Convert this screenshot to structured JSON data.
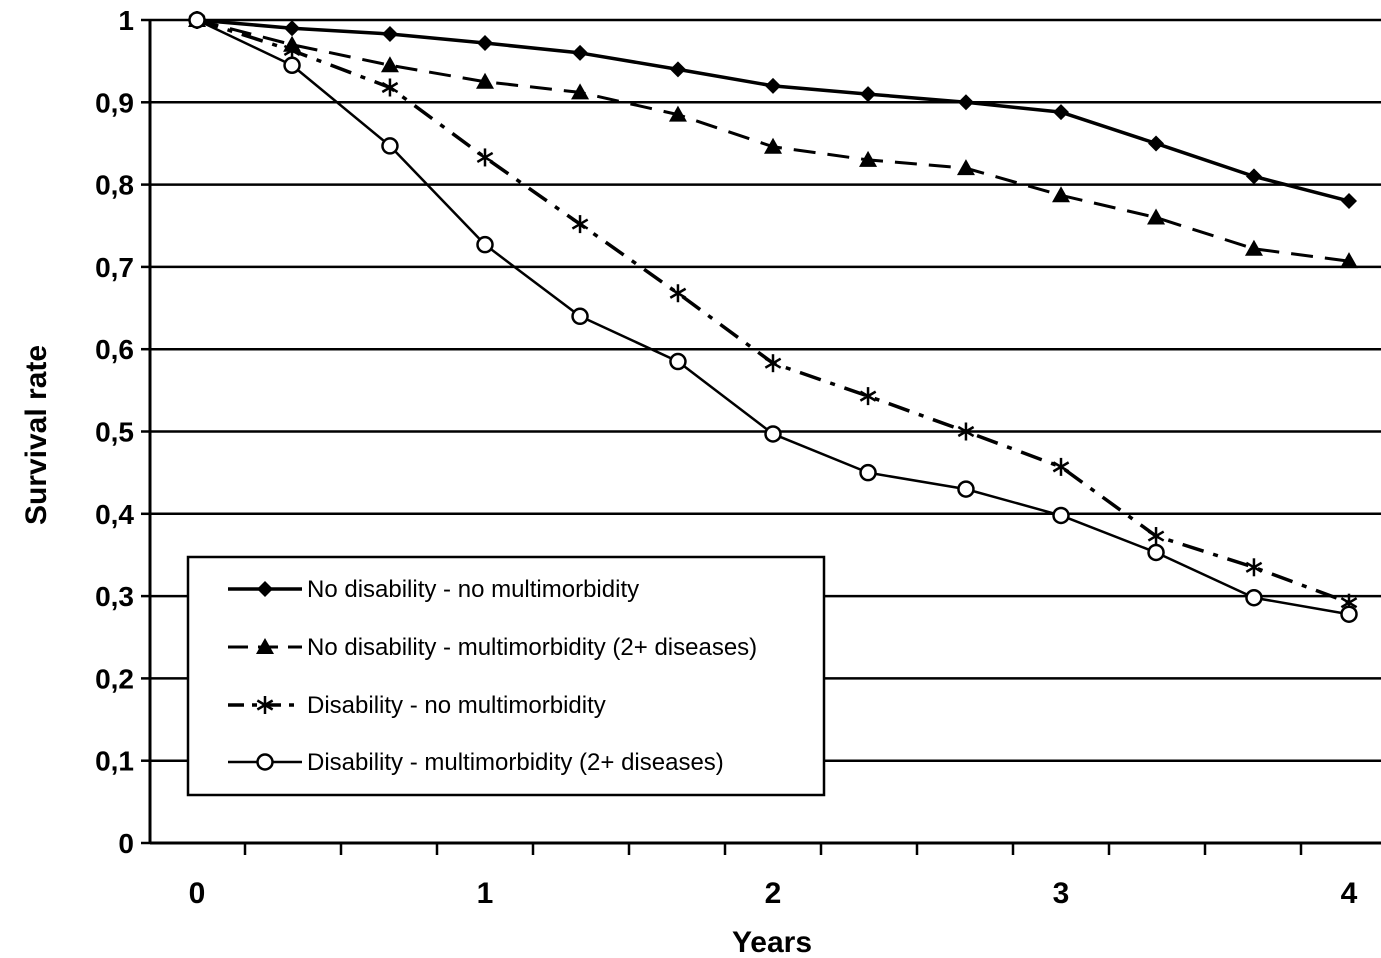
{
  "chart_data": {
    "type": "line",
    "title": "",
    "xlabel": "Years",
    "ylabel": "Survival rate",
    "xlim": [
      -0.1,
      4.2
    ],
    "ylim": [
      0,
      1
    ],
    "x_ticks": [
      0,
      1,
      2,
      3,
      4
    ],
    "x_tick_labels": [
      "0",
      "1",
      "2",
      "3",
      "4"
    ],
    "y_ticks": [
      0,
      0.1,
      0.2,
      0.3,
      0.4,
      0.5,
      0.6,
      0.7,
      0.8,
      0.9,
      1
    ],
    "y_tick_labels": [
      "0",
      "0,1",
      "0,2",
      "0,3",
      "0,4",
      "0,5",
      "0,6",
      "0,7",
      "0,8",
      "0,9",
      "1"
    ],
    "grid": "horizontal",
    "legend_position": "bottom-left",
    "series": [
      {
        "name": "No disability - no multimorbidity",
        "marker": "diamond",
        "dash": "solid",
        "x": [
          0,
          0.33,
          0.67,
          1.0,
          1.33,
          1.67,
          2.0,
          2.33,
          2.67,
          3.0,
          3.33,
          3.67,
          4.0
        ],
        "y": [
          1.0,
          0.99,
          0.983,
          0.972,
          0.96,
          0.94,
          0.92,
          0.91,
          0.9,
          0.888,
          0.85,
          0.81,
          0.78
        ]
      },
      {
        "name": "No disability - multimorbidity (2+ diseases)",
        "marker": "triangle",
        "dash": "dashed",
        "x": [
          0,
          0.33,
          0.67,
          1.0,
          1.33,
          1.67,
          2.0,
          2.33,
          2.67,
          3.0,
          3.33,
          3.67,
          4.0
        ],
        "y": [
          1.0,
          0.97,
          0.945,
          0.925,
          0.912,
          0.885,
          0.846,
          0.83,
          0.82,
          0.787,
          0.76,
          0.722,
          0.707
        ]
      },
      {
        "name": "Disability - no multimorbidity",
        "marker": "asterisk",
        "dash": "dashdot",
        "x": [
          0,
          0.33,
          0.67,
          1.0,
          1.33,
          1.67,
          2.0,
          2.33,
          2.67,
          3.0,
          3.33,
          3.67,
          4.0
        ],
        "y": [
          1.0,
          0.963,
          0.918,
          0.833,
          0.752,
          0.668,
          0.583,
          0.543,
          0.5,
          0.457,
          0.373,
          0.335,
          0.292
        ]
      },
      {
        "name": "Disability - multimorbidity (2+ diseases)",
        "marker": "circle",
        "dash": "solid",
        "x": [
          0,
          0.33,
          0.67,
          1.0,
          1.33,
          1.67,
          2.0,
          2.33,
          2.67,
          3.0,
          3.33,
          3.67,
          4.0
        ],
        "y": [
          1.0,
          0.945,
          0.847,
          0.727,
          0.64,
          0.585,
          0.497,
          0.45,
          0.43,
          0.398,
          0.353,
          0.298,
          0.278
        ]
      }
    ]
  }
}
